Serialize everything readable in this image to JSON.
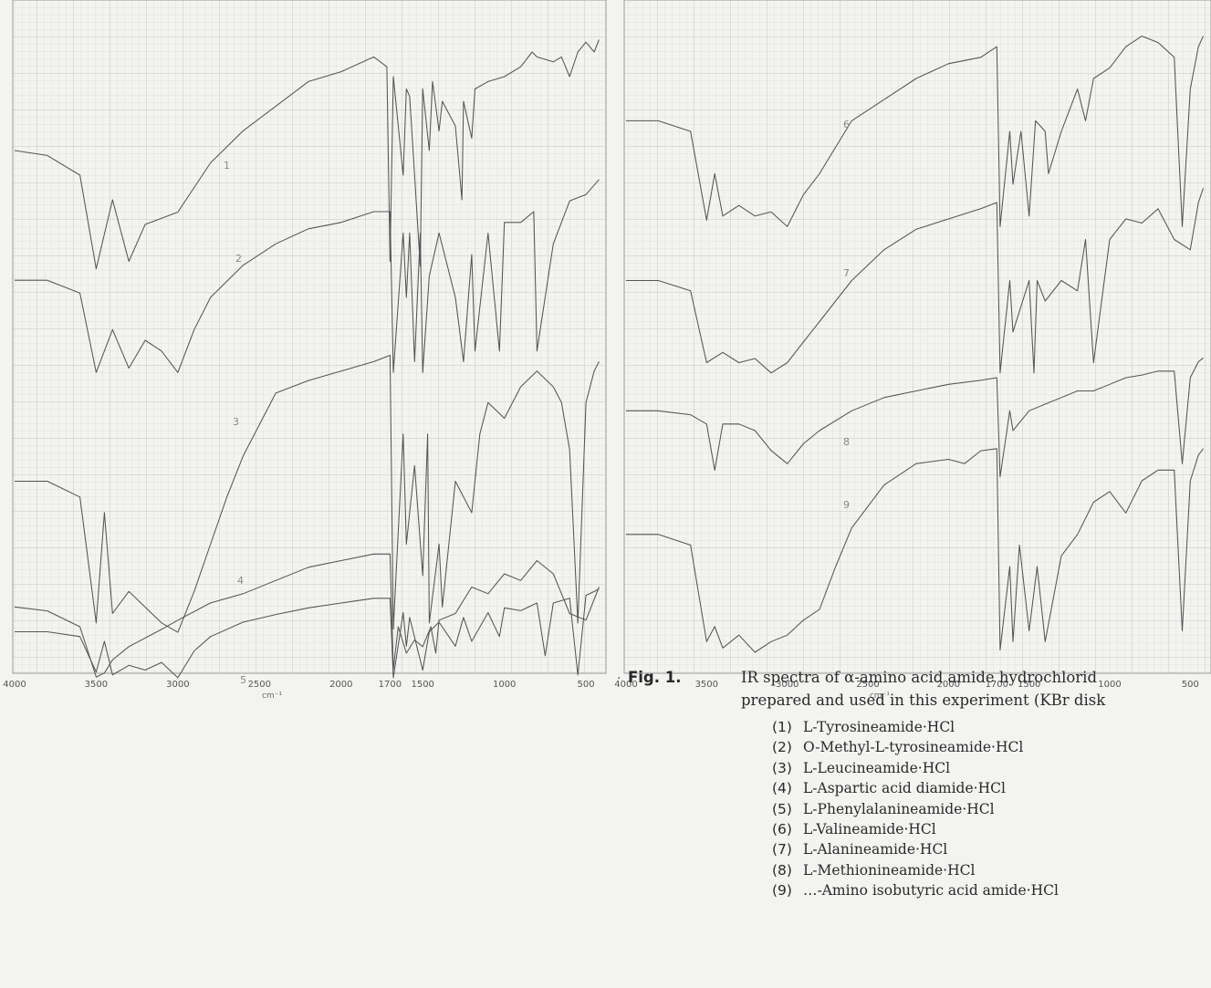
{
  "figure": {
    "bullet": "·",
    "label": "Fig. 1.",
    "caption_line1": "IR spectra of α-amino acid amide hydrochlorid",
    "caption_line2": "prepared and used in this experiment (KBr disk"
  },
  "compounds": [
    {
      "num": "(1)",
      "name": "L-Tyrosineamide·HCl"
    },
    {
      "num": "(2)",
      "name": "O-Methyl-L-tyrosineamide·HCl"
    },
    {
      "num": "(3)",
      "name": "L-Leucineamide·HCl"
    },
    {
      "num": "(4)",
      "name": "L-Aspartic acid diamide·HCl"
    },
    {
      "num": "(5)",
      "name": "L-Phenylalanineamide·HCl"
    },
    {
      "num": "(6)",
      "name": "L-Valineamide·HCl"
    },
    {
      "num": "(7)",
      "name": "L-Alanineamide·HCl"
    },
    {
      "num": "(8)",
      "name": "L-Methionineamide·HCl"
    },
    {
      "num": "(9)",
      "name": "…-Amino isobutyric acid amide·HCl"
    }
  ],
  "colors": {
    "grid": "#c9c9c9",
    "trace": "#555555",
    "paper": "#f3f3f1"
  },
  "chart_data": [
    {
      "type": "line",
      "panel": "left",
      "xlabel": "cm⁻¹",
      "xlim": [
        4000,
        400
      ],
      "x_ticks": [
        "4000",
        "3500",
        "3000",
        "2500",
        "2000",
        "1700",
        "1500",
        "1000",
        "500"
      ],
      "grid": true,
      "series": [
        {
          "label": "1",
          "x": [
            4000,
            3800,
            3600,
            3500,
            3400,
            3300,
            3200,
            3000,
            2800,
            2600,
            2400,
            2200,
            2000,
            1800,
            1720,
            1700,
            1680,
            1620,
            1600,
            1580,
            1515,
            1500,
            1460,
            1440,
            1400,
            1380,
            1340,
            1300,
            1260,
            1250,
            1200,
            1180,
            1100,
            1000,
            900,
            830,
            800,
            700,
            650,
            600,
            550,
            500,
            450,
            420
          ],
          "y": [
            0.5,
            0.52,
            0.6,
            0.98,
            0.7,
            0.95,
            0.8,
            0.75,
            0.55,
            0.42,
            0.32,
            0.22,
            0.18,
            0.12,
            0.16,
            0.95,
            0.2,
            0.6,
            0.25,
            0.28,
            0.97,
            0.25,
            0.5,
            0.22,
            0.42,
            0.3,
            0.35,
            0.4,
            0.7,
            0.3,
            0.45,
            0.25,
            0.22,
            0.2,
            0.16,
            0.1,
            0.12,
            0.14,
            0.12,
            0.2,
            0.1,
            0.06,
            0.1,
            0.05
          ]
        },
        {
          "label": "2",
          "x": [
            4000,
            3800,
            3600,
            3500,
            3400,
            3300,
            3200,
            3100,
            3000,
            2900,
            2800,
            2600,
            2400,
            2200,
            2000,
            1800,
            1700,
            1680,
            1620,
            1600,
            1580,
            1550,
            1515,
            1500,
            1460,
            1400,
            1300,
            1250,
            1200,
            1180,
            1100,
            1030,
            1000,
            900,
            820,
            800,
            700,
            600,
            500,
            420
          ],
          "y": [
            0.52,
            0.52,
            0.58,
            0.95,
            0.75,
            0.93,
            0.8,
            0.85,
            0.95,
            0.75,
            0.6,
            0.45,
            0.35,
            0.28,
            0.25,
            0.2,
            0.2,
            0.95,
            0.3,
            0.6,
            0.3,
            0.9,
            0.3,
            0.95,
            0.5,
            0.3,
            0.6,
            0.9,
            0.4,
            0.85,
            0.3,
            0.85,
            0.25,
            0.25,
            0.2,
            0.85,
            0.35,
            0.15,
            0.12,
            0.05
          ]
        },
        {
          "label": "3",
          "x": [
            4000,
            3800,
            3600,
            3500,
            3450,
            3400,
            3300,
            3200,
            3100,
            3000,
            2900,
            2800,
            2700,
            2600,
            2400,
            2200,
            2000,
            1800,
            1700,
            1680,
            1620,
            1600,
            1550,
            1500,
            1470,
            1460,
            1400,
            1380,
            1300,
            1200,
            1150,
            1100,
            1000,
            900,
            800,
            700,
            650,
            600,
            550,
            500,
            450,
            420
          ],
          "y": [
            0.5,
            0.5,
            0.55,
            0.95,
            0.6,
            0.92,
            0.85,
            0.9,
            0.95,
            0.98,
            0.85,
            0.7,
            0.55,
            0.42,
            0.22,
            0.18,
            0.15,
            0.12,
            0.1,
            0.97,
            0.35,
            0.7,
            0.45,
            0.8,
            0.35,
            0.95,
            0.7,
            0.9,
            0.5,
            0.6,
            0.35,
            0.25,
            0.3,
            0.2,
            0.15,
            0.2,
            0.25,
            0.4,
            0.95,
            0.25,
            0.15,
            0.12
          ]
        },
        {
          "label": "4",
          "x": [
            4000,
            3800,
            3600,
            3500,
            3450,
            3400,
            3300,
            3100,
            3000,
            2800,
            2600,
            2400,
            2200,
            2000,
            1800,
            1700,
            1680,
            1650,
            1600,
            1550,
            1500,
            1450,
            1420,
            1400,
            1300,
            1200,
            1100,
            1000,
            900,
            800,
            700,
            650,
            600,
            500,
            420
          ],
          "y": [
            0.45,
            0.48,
            0.6,
            0.98,
            0.95,
            0.85,
            0.75,
            0.62,
            0.55,
            0.42,
            0.35,
            0.25,
            0.15,
            0.1,
            0.05,
            0.05,
            0.92,
            0.6,
            0.8,
            0.7,
            0.75,
            0.6,
            0.8,
            0.55,
            0.5,
            0.3,
            0.35,
            0.2,
            0.25,
            0.1,
            0.2,
            0.35,
            0.5,
            0.55,
            0.3
          ]
        },
        {
          "label": "5",
          "x": [
            4000,
            3800,
            3600,
            3500,
            3450,
            3400,
            3300,
            3200,
            3100,
            3000,
            2900,
            2800,
            2600,
            2400,
            2200,
            2000,
            1800,
            1700,
            1680,
            1620,
            1600,
            1580,
            1500,
            1460,
            1400,
            1300,
            1250,
            1200,
            1100,
            1030,
            1000,
            900,
            800,
            750,
            700,
            600,
            550,
            500,
            450,
            420
          ],
          "y": [
            0.5,
            0.5,
            0.55,
            0.92,
            0.6,
            0.95,
            0.85,
            0.9,
            0.82,
            0.98,
            0.7,
            0.55,
            0.4,
            0.32,
            0.25,
            0.2,
            0.15,
            0.15,
            0.98,
            0.3,
            0.65,
            0.35,
            0.9,
            0.5,
            0.4,
            0.65,
            0.35,
            0.6,
            0.3,
            0.55,
            0.25,
            0.28,
            0.2,
            0.75,
            0.2,
            0.15,
            0.95,
            0.12,
            0.08,
            0.05
          ]
        },
        {
          "label": "6",
          "x": [
            4000,
            3800,
            3600,
            3500,
            3450,
            3400,
            3300,
            3200,
            3100,
            3000,
            2900,
            2800,
            2600,
            2400,
            2200,
            2000,
            1800,
            1700,
            1680,
            1620,
            1600,
            1550,
            1500,
            1460,
            1400,
            1380,
            1300,
            1200,
            1150,
            1100,
            1000,
            900,
            800,
            700,
            600,
            550,
            500,
            450,
            420
          ],
          "y": [
            0.45,
            0.45,
            0.5,
            0.92,
            0.7,
            0.9,
            0.85,
            0.9,
            0.88,
            0.95,
            0.8,
            0.7,
            0.45,
            0.35,
            0.25,
            0.18,
            0.15,
            0.1,
            0.95,
            0.5,
            0.75,
            0.5,
            0.9,
            0.45,
            0.5,
            0.7,
            0.5,
            0.3,
            0.45,
            0.25,
            0.2,
            0.1,
            0.05,
            0.08,
            0.15,
            0.95,
            0.3,
            0.1,
            0.05
          ]
        },
        {
          "label": "7",
          "x": [
            4000,
            3800,
            3600,
            3500,
            3400,
            3300,
            3200,
            3100,
            3000,
            2900,
            2800,
            2600,
            2400,
            2200,
            2000,
            1800,
            1700,
            1680,
            1620,
            1600,
            1500,
            1470,
            1450,
            1400,
            1300,
            1200,
            1150,
            1100,
            1000,
            900,
            800,
            700,
            600,
            500,
            450,
            420
          ],
          "y": [
            0.5,
            0.5,
            0.55,
            0.9,
            0.85,
            0.9,
            0.88,
            0.95,
            0.9,
            0.8,
            0.7,
            0.5,
            0.35,
            0.25,
            0.2,
            0.15,
            0.12,
            0.95,
            0.5,
            0.75,
            0.5,
            0.95,
            0.5,
            0.6,
            0.5,
            0.55,
            0.3,
            0.9,
            0.3,
            0.2,
            0.22,
            0.15,
            0.3,
            0.35,
            0.12,
            0.05
          ]
        },
        {
          "label": "8",
          "x": [
            4000,
            3800,
            3600,
            3500,
            3450,
            3400,
            3300,
            3200,
            3100,
            3000,
            2900,
            2800,
            2600,
            2400,
            2200,
            2000,
            1800,
            1700,
            1680,
            1620,
            1600,
            1500,
            1400,
            1300,
            1200,
            1100,
            1000,
            900,
            800,
            700,
            600,
            550,
            500,
            450,
            420
          ],
          "y": [
            0.45,
            0.45,
            0.48,
            0.55,
            0.9,
            0.55,
            0.55,
            0.6,
            0.75,
            0.85,
            0.7,
            0.6,
            0.45,
            0.35,
            0.3,
            0.25,
            0.22,
            0.2,
            0.95,
            0.45,
            0.6,
            0.45,
            0.4,
            0.35,
            0.3,
            0.3,
            0.25,
            0.2,
            0.18,
            0.15,
            0.15,
            0.85,
            0.2,
            0.08,
            0.05
          ]
        },
        {
          "label": "9",
          "x": [
            4000,
            3800,
            3600,
            3500,
            3450,
            3400,
            3300,
            3200,
            3100,
            3000,
            2900,
            2800,
            2700,
            2600,
            2400,
            2200,
            2000,
            1900,
            1800,
            1700,
            1680,
            1620,
            1600,
            1560,
            1500,
            1450,
            1400,
            1300,
            1200,
            1100,
            1000,
            900,
            800,
            700,
            600,
            550,
            500,
            450,
            420
          ],
          "y": [
            0.45,
            0.45,
            0.5,
            0.95,
            0.88,
            0.98,
            0.92,
            1.0,
            0.95,
            0.92,
            0.85,
            0.8,
            0.6,
            0.42,
            0.22,
            0.12,
            0.1,
            0.12,
            0.06,
            0.05,
            0.99,
            0.6,
            0.95,
            0.5,
            0.9,
            0.6,
            0.95,
            0.55,
            0.45,
            0.3,
            0.25,
            0.35,
            0.2,
            0.15,
            0.15,
            0.9,
            0.2,
            0.08,
            0.05
          ]
        }
      ]
    }
  ]
}
